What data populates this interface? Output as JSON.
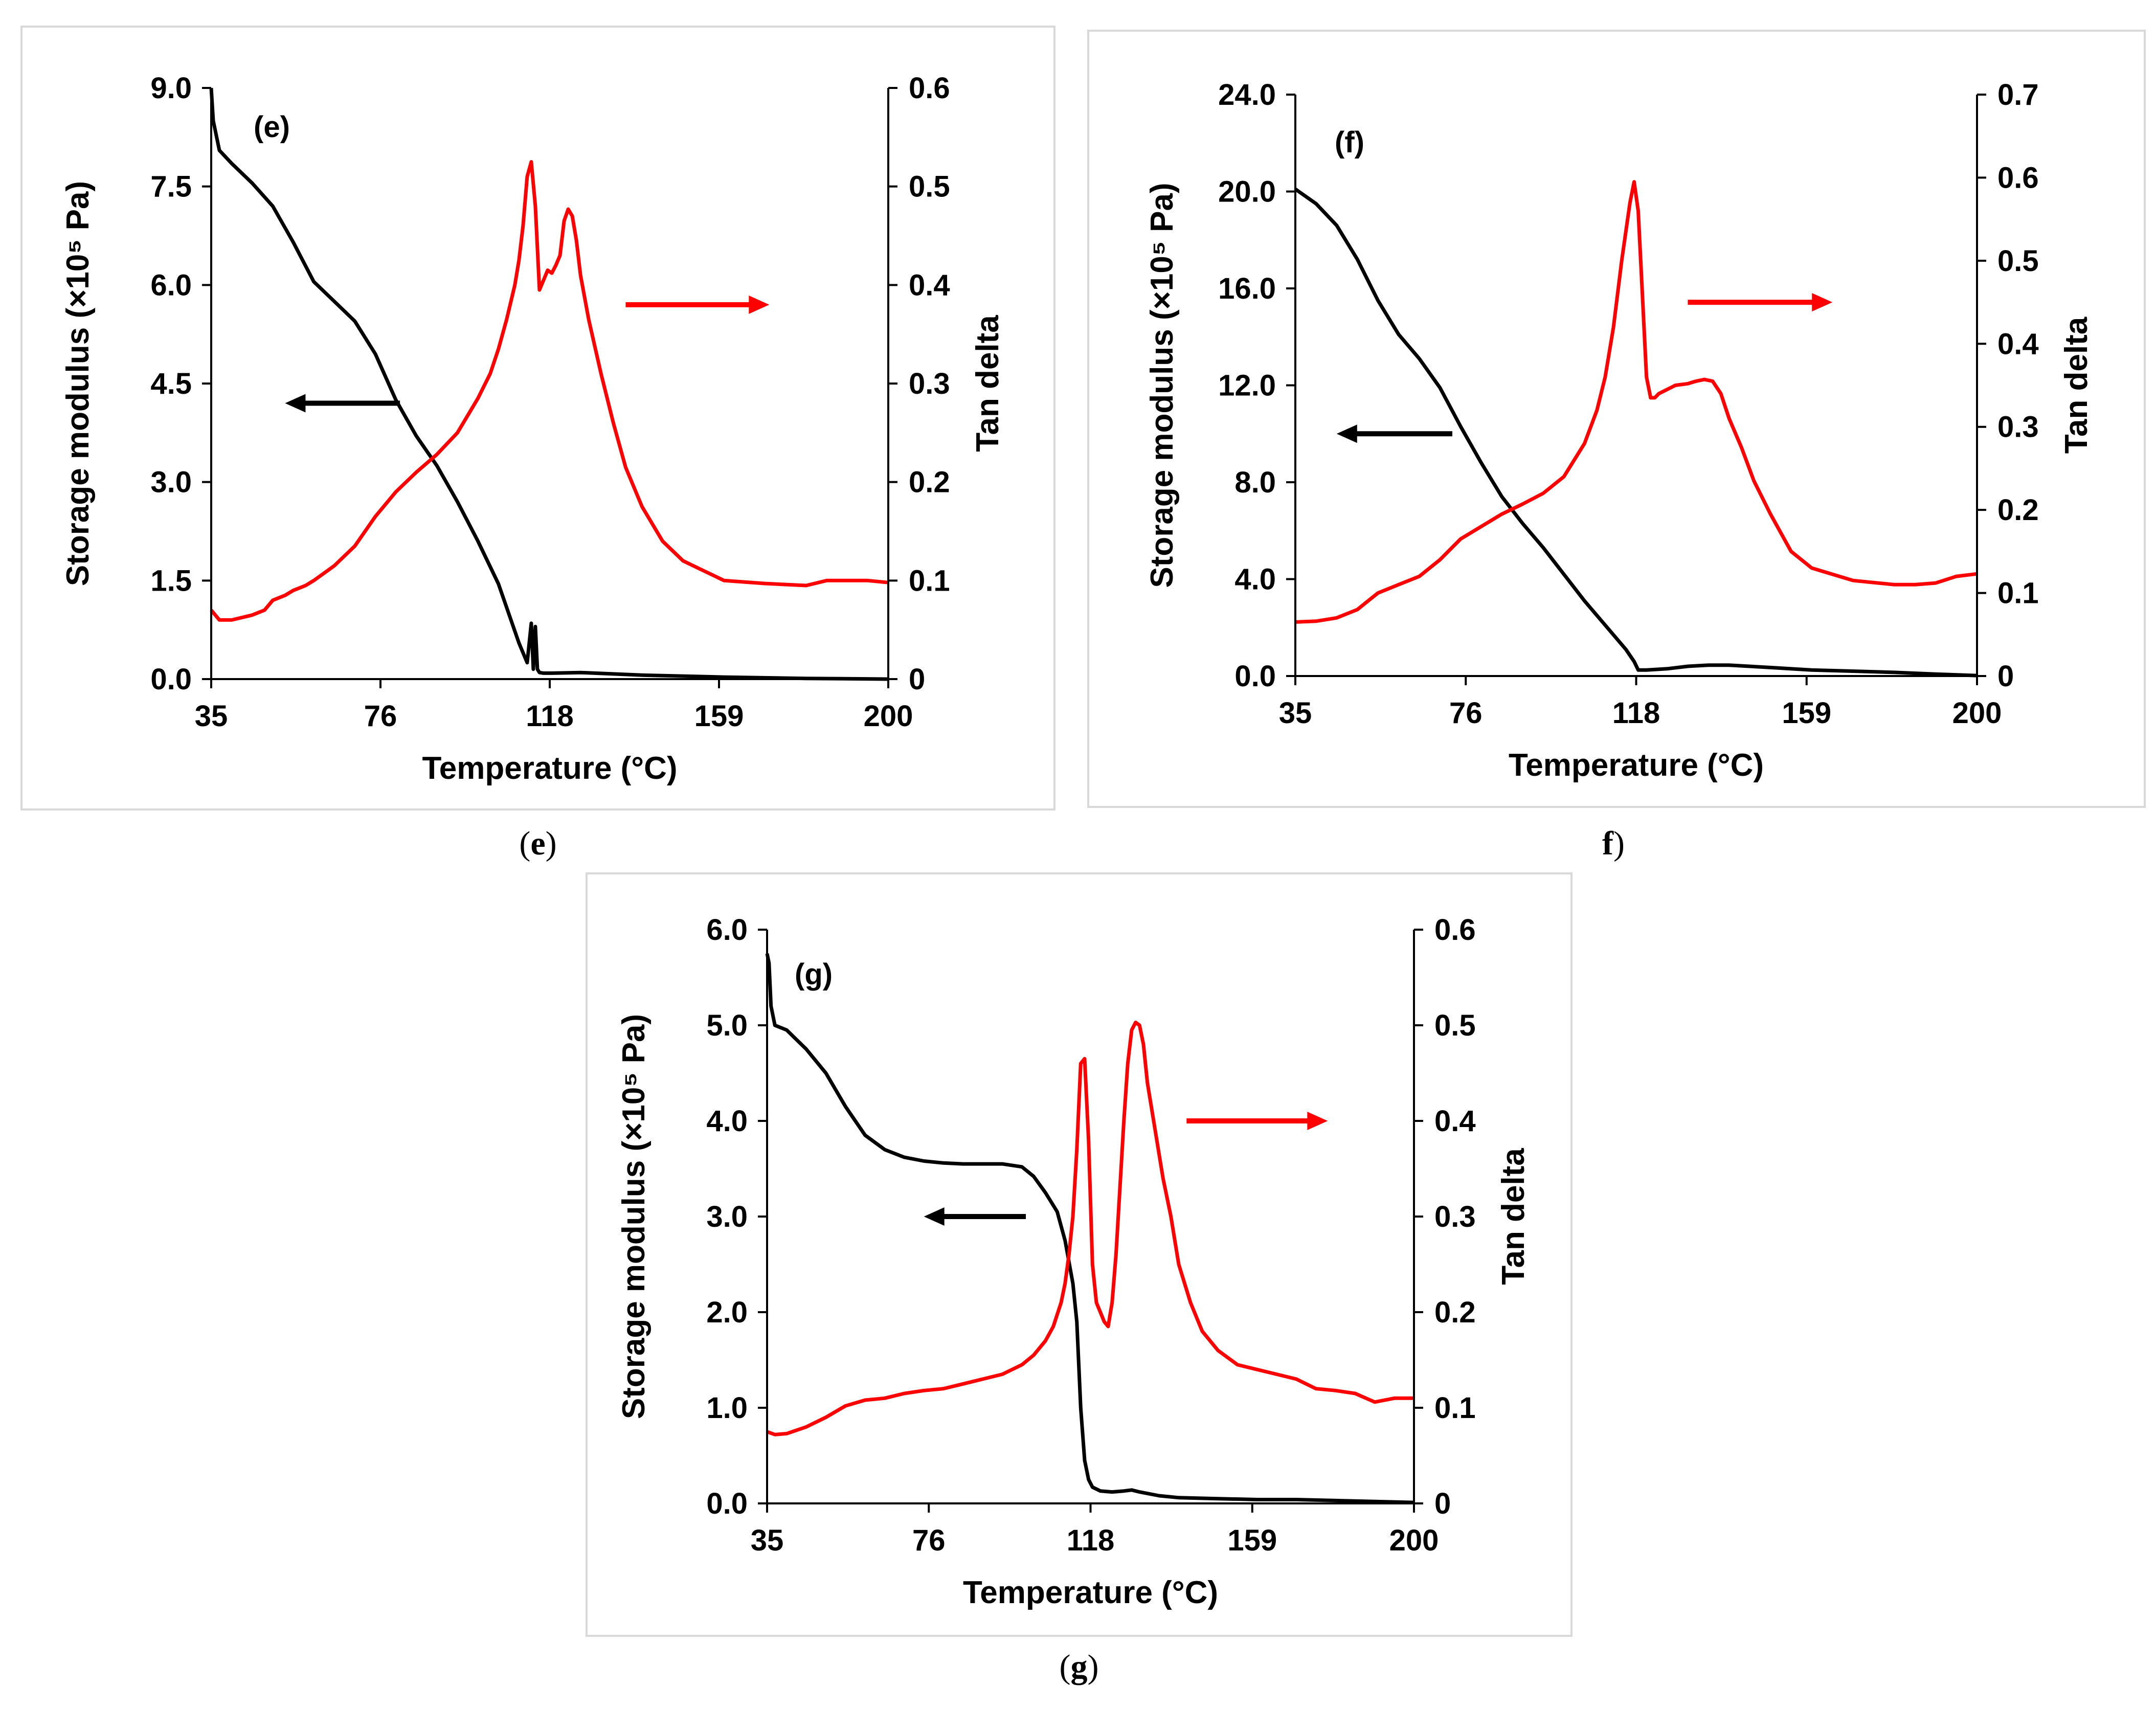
{
  "colors": {
    "modulus": "#000000",
    "tan_delta": "#ff0000",
    "frame": "#d9d9d9"
  },
  "chart_data": [
    {
      "type": "line",
      "panel_label": "(e)",
      "caption": {
        "open": "(",
        "letter": "e",
        "close": ")"
      },
      "xlabel": "Temperature (°C)",
      "ylabel": "Storage modulus (×10⁵ Pa)",
      "y2label": "Tan delta",
      "xlim": [
        35,
        200
      ],
      "xticks": [
        35,
        76,
        118,
        159,
        200
      ],
      "ylim": [
        0,
        9
      ],
      "yticks": [
        "0.0",
        "1.5",
        "3.0",
        "4.5",
        "6.0",
        "7.5",
        "9.0"
      ],
      "y2lim": [
        0,
        0.6
      ],
      "y2ticks": [
        "0",
        "0.1",
        "0.2",
        "0.3",
        "0.4",
        "0.5",
        "0.6"
      ],
      "arrows": {
        "left": {
          "x": [
            81,
            53
          ],
          "y": 4.2
        },
        "right": {
          "x": [
            136,
            171
          ],
          "y": 0.38
        }
      },
      "series": [
        {
          "name": "Storage modulus",
          "axis": "left",
          "color": "#000000",
          "x": [
            35,
            35.5,
            37,
            40,
            45,
            50,
            55,
            60,
            65,
            70,
            75,
            80,
            85,
            90,
            95,
            100,
            105,
            110,
            112,
            113,
            113.5,
            114,
            114.5,
            115,
            116,
            118,
            125,
            140,
            160,
            180,
            200
          ],
          "y": [
            9.0,
            8.5,
            8.05,
            7.85,
            7.55,
            7.2,
            6.65,
            6.05,
            5.75,
            5.45,
            4.95,
            4.25,
            3.7,
            3.25,
            2.7,
            2.1,
            1.45,
            0.55,
            0.25,
            0.85,
            0.15,
            0.8,
            0.15,
            0.1,
            0.09,
            0.09,
            0.1,
            0.06,
            0.03,
            0.01,
            0.0
          ]
        },
        {
          "name": "Tan delta",
          "axis": "right",
          "color": "#ff0000",
          "x": [
            35,
            37,
            40,
            45,
            48,
            50,
            53,
            55,
            58,
            60,
            65,
            70,
            75,
            80,
            85,
            90,
            95,
            100,
            103,
            105,
            107,
            109,
            110,
            111,
            112,
            113,
            114,
            115,
            116,
            117,
            118,
            119,
            120,
            121,
            122,
            123,
            124,
            125,
            127,
            130,
            133,
            136,
            140,
            145,
            150,
            155,
            160,
            170,
            180,
            185,
            190,
            195,
            200
          ],
          "y": [
            0.07,
            0.06,
            0.06,
            0.065,
            0.07,
            0.08,
            0.085,
            0.09,
            0.095,
            0.1,
            0.115,
            0.135,
            0.165,
            0.19,
            0.21,
            0.228,
            0.25,
            0.285,
            0.31,
            0.335,
            0.365,
            0.4,
            0.425,
            0.46,
            0.51,
            0.525,
            0.48,
            0.395,
            0.405,
            0.415,
            0.412,
            0.42,
            0.43,
            0.465,
            0.477,
            0.47,
            0.445,
            0.41,
            0.365,
            0.31,
            0.26,
            0.215,
            0.175,
            0.14,
            0.12,
            0.11,
            0.1,
            0.097,
            0.095,
            0.1,
            0.1,
            0.1,
            0.098
          ]
        }
      ]
    },
    {
      "type": "line",
      "panel_label": "(f)",
      "caption": {
        "open": "",
        "letter": "f",
        "close": ")"
      },
      "xlabel": "Temperature (°C)",
      "ylabel": "Storage modulus (×10⁵ Pa)",
      "y2label": "Tan delta",
      "xlim": [
        35,
        200
      ],
      "xticks": [
        35,
        76,
        118,
        159,
        200
      ],
      "ylim": [
        0,
        24
      ],
      "yticks": [
        "0.0",
        "4.0",
        "8.0",
        "12.0",
        "16.0",
        "20.0",
        "24.0"
      ],
      "y2lim": [
        0,
        0.7
      ],
      "y2ticks": [
        "0",
        "0.1",
        "0.2",
        "0.3",
        "0.4",
        "0.5",
        "0.6",
        "0.7"
      ],
      "arrows": {
        "left": {
          "x": [
            73,
            45
          ],
          "y": 10.0
        },
        "right": {
          "x": [
            130,
            165
          ],
          "y": 0.45
        }
      },
      "series": [
        {
          "name": "Storage modulus",
          "axis": "left",
          "color": "#000000",
          "x": [
            35,
            40,
            45,
            50,
            55,
            60,
            65,
            70,
            75,
            80,
            85,
            90,
            95,
            100,
            105,
            110,
            115,
            117,
            118,
            120,
            125,
            130,
            135,
            140,
            150,
            160,
            170,
            180,
            190,
            200
          ],
          "y": [
            20.1,
            19.5,
            18.6,
            17.2,
            15.5,
            14.1,
            13.1,
            11.9,
            10.3,
            8.8,
            7.4,
            6.3,
            5.3,
            4.2,
            3.1,
            2.1,
            1.1,
            0.6,
            0.25,
            0.25,
            0.3,
            0.4,
            0.45,
            0.45,
            0.35,
            0.25,
            0.2,
            0.15,
            0.08,
            0.02
          ]
        },
        {
          "name": "Tan delta",
          "axis": "right",
          "color": "#ff0000",
          "x": [
            35,
            40,
            45,
            50,
            55,
            60,
            65,
            70,
            75,
            80,
            85,
            90,
            95,
            100,
            105,
            108,
            110,
            112,
            114,
            116,
            117,
            118,
            119,
            120,
            121,
            122,
            123,
            125,
            127,
            130,
            132,
            134,
            136,
            138,
            140,
            143,
            146,
            150,
            155,
            160,
            170,
            180,
            185,
            190,
            195,
            200
          ],
          "y": [
            0.065,
            0.066,
            0.07,
            0.08,
            0.1,
            0.11,
            0.12,
            0.14,
            0.165,
            0.18,
            0.195,
            0.207,
            0.22,
            0.24,
            0.28,
            0.32,
            0.36,
            0.42,
            0.5,
            0.57,
            0.595,
            0.56,
            0.46,
            0.36,
            0.335,
            0.335,
            0.34,
            0.345,
            0.35,
            0.352,
            0.355,
            0.357,
            0.355,
            0.34,
            0.31,
            0.275,
            0.235,
            0.195,
            0.15,
            0.13,
            0.115,
            0.11,
            0.11,
            0.112,
            0.12,
            0.123
          ]
        }
      ]
    },
    {
      "type": "line",
      "panel_label": "(g)",
      "caption": {
        "open": "(",
        "letter": "g",
        "close": ")"
      },
      "xlabel": "Temperature (°C)",
      "ylabel": "Storage modulus (×10⁵ Pa)",
      "y2label": "Tan delta",
      "xlim": [
        35,
        200
      ],
      "xticks": [
        35,
        76,
        118,
        159,
        200
      ],
      "ylim": [
        0,
        6
      ],
      "yticks": [
        "0.0",
        "1.0",
        "2.0",
        "3.0",
        "4.0",
        "5.0",
        "6.0"
      ],
      "y2lim": [
        0,
        0.6
      ],
      "y2ticks": [
        "0",
        "0.1",
        "0.2",
        "0.3",
        "0.4",
        "0.5",
        "0.6"
      ],
      "arrows": {
        "left": {
          "x": [
            101,
            75
          ],
          "y": 3.0
        },
        "right": {
          "x": [
            142,
            178
          ],
          "y": 0.4
        }
      },
      "series": [
        {
          "name": "Storage modulus",
          "axis": "left",
          "color": "#000000",
          "x": [
            35,
            35.5,
            36,
            37,
            40,
            45,
            50,
            55,
            60,
            65,
            70,
            75,
            80,
            85,
            90,
            95,
            100,
            103,
            106,
            109,
            111,
            113,
            114,
            115,
            116,
            117,
            118,
            120,
            123,
            126,
            128,
            130,
            135,
            140,
            150,
            160,
            170,
            180,
            190,
            200
          ],
          "y": [
            5.75,
            5.65,
            5.2,
            5.0,
            4.95,
            4.75,
            4.5,
            4.15,
            3.85,
            3.7,
            3.62,
            3.58,
            3.56,
            3.55,
            3.55,
            3.55,
            3.52,
            3.42,
            3.25,
            3.05,
            2.75,
            2.3,
            1.9,
            1.0,
            0.45,
            0.25,
            0.17,
            0.13,
            0.12,
            0.13,
            0.14,
            0.12,
            0.08,
            0.06,
            0.05,
            0.04,
            0.04,
            0.03,
            0.02,
            0.01
          ]
        },
        {
          "name": "Tan delta",
          "axis": "right",
          "color": "#ff0000",
          "x": [
            35,
            37,
            40,
            45,
            50,
            55,
            60,
            65,
            70,
            75,
            80,
            85,
            90,
            95,
            100,
            103,
            106,
            108,
            110,
            111,
            112,
            113,
            114,
            115,
            116,
            117,
            118,
            119,
            120,
            121,
            122,
            123,
            124,
            125,
            126,
            127,
            128,
            129,
            130,
            131,
            132,
            134,
            136,
            138,
            140,
            143,
            146,
            150,
            155,
            160,
            165,
            170,
            175,
            180,
            185,
            190,
            195,
            200
          ],
          "y": [
            0.075,
            0.072,
            0.073,
            0.08,
            0.09,
            0.102,
            0.108,
            0.11,
            0.115,
            0.118,
            0.12,
            0.125,
            0.13,
            0.135,
            0.145,
            0.155,
            0.17,
            0.185,
            0.21,
            0.23,
            0.26,
            0.3,
            0.37,
            0.46,
            0.465,
            0.38,
            0.25,
            0.21,
            0.2,
            0.19,
            0.185,
            0.21,
            0.26,
            0.33,
            0.4,
            0.46,
            0.495,
            0.503,
            0.5,
            0.48,
            0.44,
            0.39,
            0.34,
            0.3,
            0.25,
            0.21,
            0.18,
            0.16,
            0.145,
            0.14,
            0.135,
            0.13,
            0.12,
            0.118,
            0.115,
            0.106,
            0.11,
            0.11
          ]
        }
      ]
    }
  ]
}
